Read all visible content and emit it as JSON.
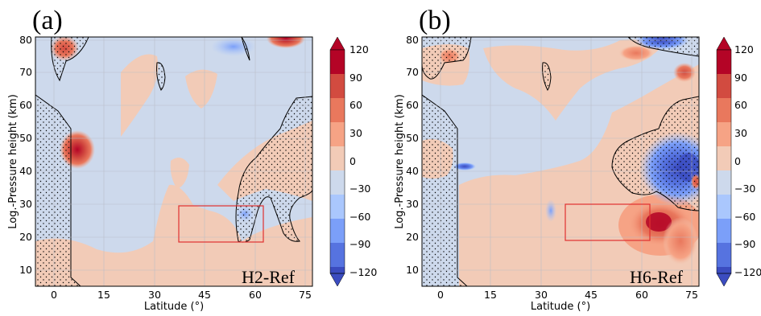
{
  "chart_data": [
    {
      "type": "contour",
      "panel_label": "(a)",
      "annotation": "H2-Ref",
      "xlabel": "Latitude (°)",
      "ylabel": "Log.-Pressure height (km)",
      "xlim": [
        -5,
        77
      ],
      "ylim": [
        5,
        81
      ],
      "xticks": [
        0,
        15,
        30,
        45,
        60,
        75
      ],
      "yticks": [
        10,
        20,
        30,
        40,
        50,
        60,
        70,
        80
      ],
      "grid": true,
      "box": {
        "lat": [
          37.5,
          62
        ],
        "height": [
          18.5,
          30
        ]
      },
      "features": [
        {
          "kind": "warm",
          "lat": 7,
          "height": 47,
          "value": 120
        },
        {
          "kind": "warm",
          "lat": 3,
          "height": 78,
          "value": 90
        },
        {
          "kind": "warm",
          "lat": 70,
          "height": 80,
          "value": 90
        },
        {
          "kind": "cold",
          "lat": 53,
          "height": 78,
          "value": -40
        },
        {
          "kind": "cold",
          "lat": 58,
          "height": 28,
          "value": -35
        }
      ]
    },
    {
      "type": "contour",
      "panel_label": "(b)",
      "annotation": "H6-Ref",
      "xlabel": "Latitude (°)",
      "ylabel": "Log.-Pressure height (km)",
      "xlim": [
        -5,
        77
      ],
      "ylim": [
        5,
        81
      ],
      "xticks": [
        0,
        15,
        30,
        45,
        60,
        75
      ],
      "yticks": [
        10,
        20,
        30,
        40,
        50,
        60,
        70,
        80
      ],
      "grid": true,
      "box": {
        "lat": [
          37.5,
          62
        ],
        "height": [
          18.5,
          30
        ]
      },
      "features": [
        {
          "kind": "cold",
          "lat": 72,
          "height": 40,
          "value": -110
        },
        {
          "kind": "cold",
          "lat": 67,
          "height": 80,
          "value": -110
        },
        {
          "kind": "cold",
          "lat": 7,
          "height": 41,
          "value": -90
        },
        {
          "kind": "cold",
          "lat": 33,
          "height": 26,
          "value": -40
        },
        {
          "kind": "warm",
          "lat": 67,
          "height": 22,
          "value": 100
        },
        {
          "kind": "warm",
          "lat": 68,
          "height": 74,
          "value": 50
        },
        {
          "kind": "warm",
          "lat": 2,
          "height": 77,
          "value": 40
        }
      ]
    }
  ],
  "colorbar": {
    "ticks": [
      "120",
      "90",
      "60",
      "30",
      "0",
      "−30",
      "−60",
      "−90",
      "−120"
    ],
    "colors": [
      "#b40426",
      "#d24b40",
      "#e9785d",
      "#f6a385",
      "#f2cbb7",
      "#cdd9ec",
      "#aac7fd",
      "#7b9ff9",
      "#5673e0",
      "#3b4cc0"
    ]
  }
}
